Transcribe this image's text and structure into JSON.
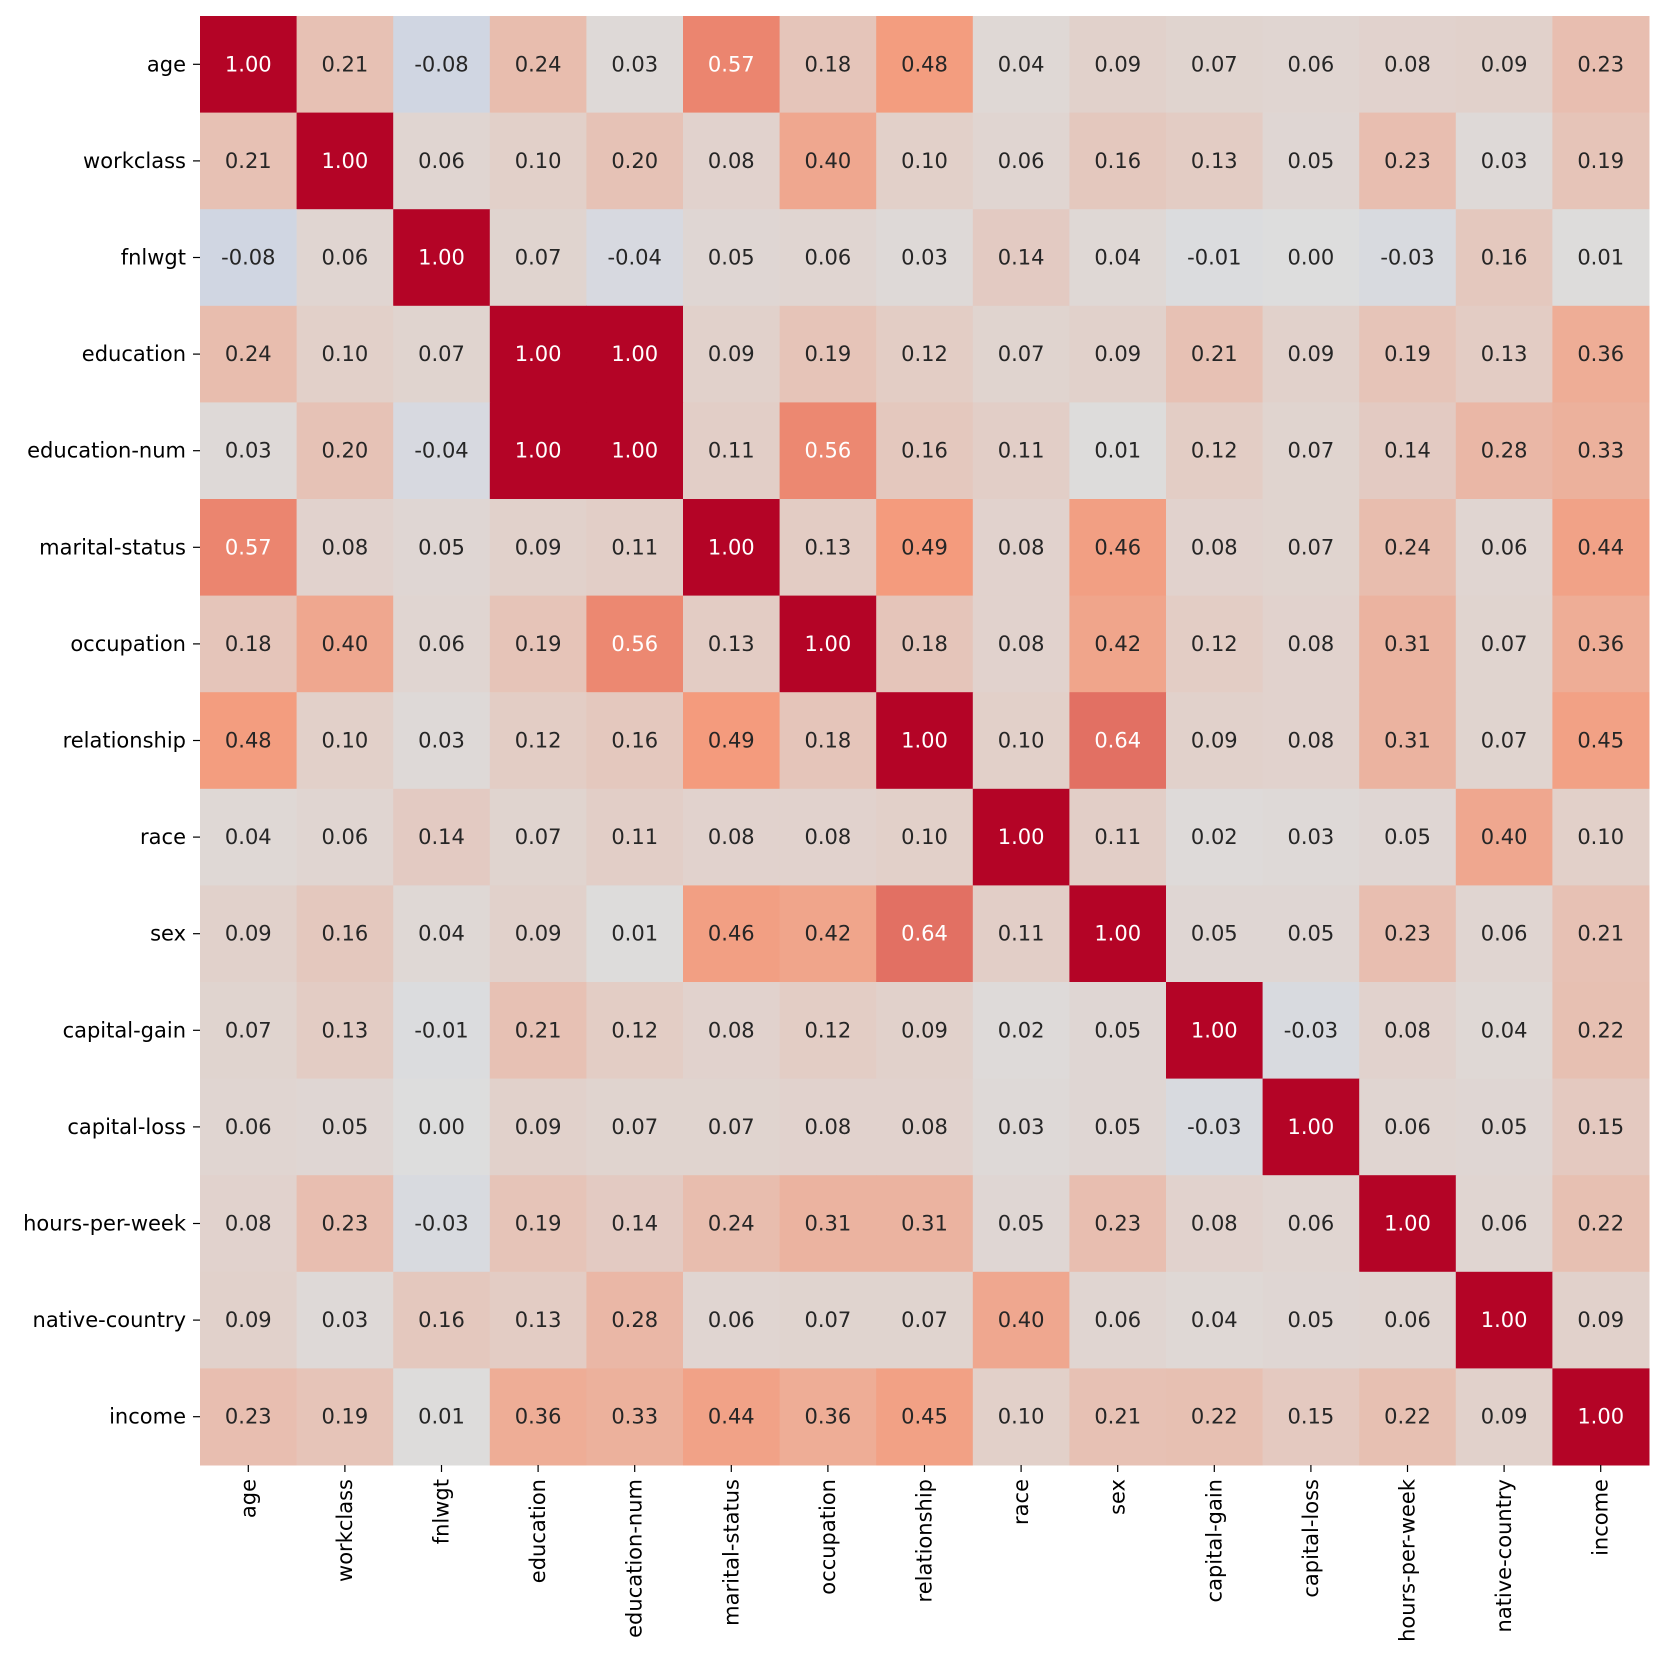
{
  "chart_data": {
    "type": "heatmap",
    "title": "",
    "xlabel": "",
    "ylabel": "",
    "colormap": "coolwarm",
    "vmin": -1,
    "vmax": 1,
    "colorbar": false,
    "number_format": "0.00",
    "labels": [
      "age",
      "workclass",
      "fnlwgt",
      "education",
      "education-num",
      "marital-status",
      "occupation",
      "relationship",
      "race",
      "sex",
      "capital-gain",
      "capital-loss",
      "hours-per-week",
      "native-country",
      "income"
    ],
    "matrix": [
      [
        1.0,
        0.21,
        -0.08,
        0.24,
        0.03,
        0.57,
        0.18,
        0.48,
        0.04,
        0.09,
        0.07,
        0.06,
        0.08,
        0.09,
        0.23
      ],
      [
        0.21,
        1.0,
        0.06,
        0.1,
        0.2,
        0.08,
        0.4,
        0.1,
        0.06,
        0.16,
        0.13,
        0.05,
        0.23,
        0.03,
        0.19
      ],
      [
        -0.08,
        0.06,
        1.0,
        0.07,
        -0.04,
        0.05,
        0.06,
        0.03,
        0.14,
        0.04,
        -0.01,
        0.0,
        -0.03,
        0.16,
        0.01
      ],
      [
        0.24,
        0.1,
        0.07,
        1.0,
        1.0,
        0.09,
        0.19,
        0.12,
        0.07,
        0.09,
        0.21,
        0.09,
        0.19,
        0.13,
        0.36
      ],
      [
        0.03,
        0.2,
        -0.04,
        1.0,
        1.0,
        0.11,
        0.56,
        0.16,
        0.11,
        0.01,
        0.12,
        0.07,
        0.14,
        0.28,
        0.33
      ],
      [
        0.57,
        0.08,
        0.05,
        0.09,
        0.11,
        1.0,
        0.13,
        0.49,
        0.08,
        0.46,
        0.08,
        0.07,
        0.24,
        0.06,
        0.44
      ],
      [
        0.18,
        0.4,
        0.06,
        0.19,
        0.56,
        0.13,
        1.0,
        0.18,
        0.08,
        0.42,
        0.12,
        0.08,
        0.31,
        0.07,
        0.36
      ],
      [
        0.48,
        0.1,
        0.03,
        0.12,
        0.16,
        0.49,
        0.18,
        1.0,
        0.1,
        0.64,
        0.09,
        0.08,
        0.31,
        0.07,
        0.45
      ],
      [
        0.04,
        0.06,
        0.14,
        0.07,
        0.11,
        0.08,
        0.08,
        0.1,
        1.0,
        0.11,
        0.02,
        0.03,
        0.05,
        0.4,
        0.1
      ],
      [
        0.09,
        0.16,
        0.04,
        0.09,
        0.01,
        0.46,
        0.42,
        0.64,
        0.11,
        1.0,
        0.05,
        0.05,
        0.23,
        0.06,
        0.21
      ],
      [
        0.07,
        0.13,
        -0.01,
        0.21,
        0.12,
        0.08,
        0.12,
        0.09,
        0.02,
        0.05,
        1.0,
        -0.03,
        0.08,
        0.04,
        0.22
      ],
      [
        0.06,
        0.05,
        0.0,
        0.09,
        0.07,
        0.07,
        0.08,
        0.08,
        0.03,
        0.05,
        -0.03,
        1.0,
        0.06,
        0.05,
        0.15
      ],
      [
        0.08,
        0.23,
        -0.03,
        0.19,
        0.14,
        0.24,
        0.31,
        0.31,
        0.05,
        0.23,
        0.08,
        0.06,
        1.0,
        0.06,
        0.22
      ],
      [
        0.09,
        0.03,
        0.16,
        0.13,
        0.28,
        0.06,
        0.07,
        0.07,
        0.4,
        0.06,
        0.04,
        0.05,
        0.06,
        1.0,
        0.09
      ],
      [
        0.23,
        0.19,
        0.01,
        0.36,
        0.33,
        0.44,
        0.36,
        0.45,
        0.1,
        0.21,
        0.22,
        0.15,
        0.22,
        0.09,
        1.0
      ]
    ]
  }
}
